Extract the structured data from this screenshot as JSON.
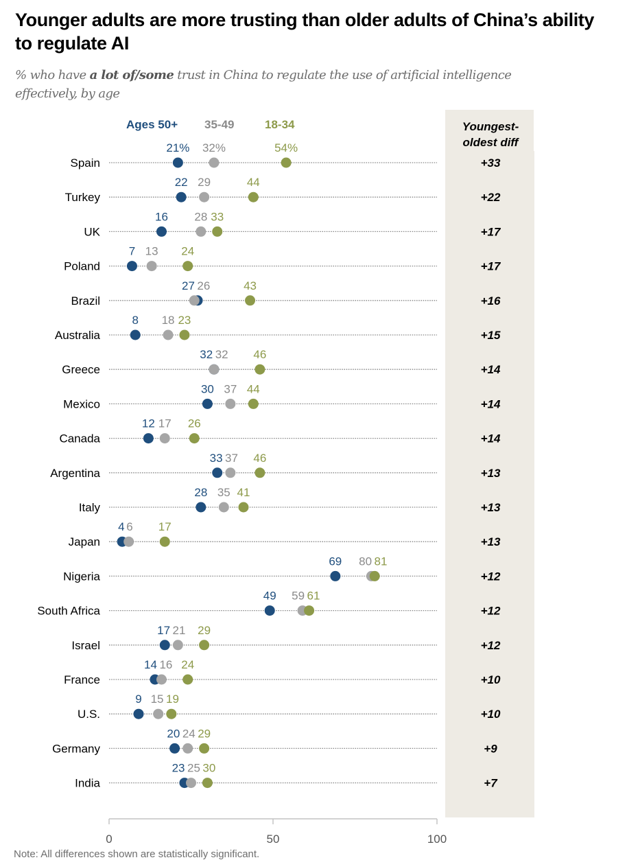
{
  "title": "Younger adults are more trusting than older adults of China’s ability to regulate AI",
  "subtitle": {
    "before": "% who have ",
    "bold": "a lot of/some",
    "after": " trust in China to regulate the use of artificial intelligence effectively, by age"
  },
  "note": "Note: All differences shown are statistically significant.",
  "colors": {
    "ages_50_plus": "#1f4e7d",
    "ages_35_49": "#a6a6a6",
    "ages_18_34": "#8d9a4a",
    "diff_column_bg": "#eeebe4",
    "label_35_49": "#8a8a8a"
  },
  "chart_data": {
    "type": "scatter",
    "subtype": "dot-plot",
    "title": "Younger adults are more trusting than older adults of China’s ability to regulate AI",
    "subtitle": "% who have a lot of/some trust in China to regulate the use of artificial intelligence effectively, by age",
    "xlabel": "",
    "ylabel": "",
    "xlim": [
      0,
      100
    ],
    "x_ticks": [
      0,
      50,
      100
    ],
    "grid": false,
    "legend_placement": "top",
    "legend": [
      "Ages 50+",
      "35-49",
      "18-34"
    ],
    "categories": [
      "Spain",
      "Turkey",
      "UK",
      "Poland",
      "Brazil",
      "Australia",
      "Greece",
      "Mexico",
      "Canada",
      "Argentina",
      "Italy",
      "Japan",
      "Nigeria",
      "South Africa",
      "Israel",
      "France",
      "U.S.",
      "Germany",
      "India"
    ],
    "series": [
      {
        "name": "Ages 50+",
        "key": "ages_50_plus",
        "values": [
          21,
          22,
          16,
          7,
          27,
          8,
          32,
          30,
          12,
          33,
          28,
          4,
          69,
          49,
          17,
          14,
          9,
          20,
          23
        ]
      },
      {
        "name": "35-49",
        "key": "ages_35_49",
        "values": [
          32,
          29,
          28,
          13,
          26,
          18,
          32,
          37,
          17,
          37,
          35,
          6,
          80,
          59,
          21,
          16,
          15,
          24,
          25
        ]
      },
      {
        "name": "18-34",
        "key": "ages_18_34",
        "values": [
          54,
          44,
          33,
          24,
          43,
          23,
          46,
          44,
          26,
          46,
          41,
          17,
          81,
          61,
          29,
          24,
          19,
          29,
          30
        ]
      }
    ],
    "first_row_percent_suffix": true,
    "diff_column": {
      "header": [
        "Youngest-",
        "oldest diff"
      ],
      "values": [
        "+33",
        "+22",
        "+17",
        "+17",
        "+16",
        "+15",
        "+14",
        "+14",
        "+14",
        "+13",
        "+13",
        "+13",
        "+12",
        "+12",
        "+12",
        "+10",
        "+10",
        "+9",
        "+7"
      ]
    }
  }
}
